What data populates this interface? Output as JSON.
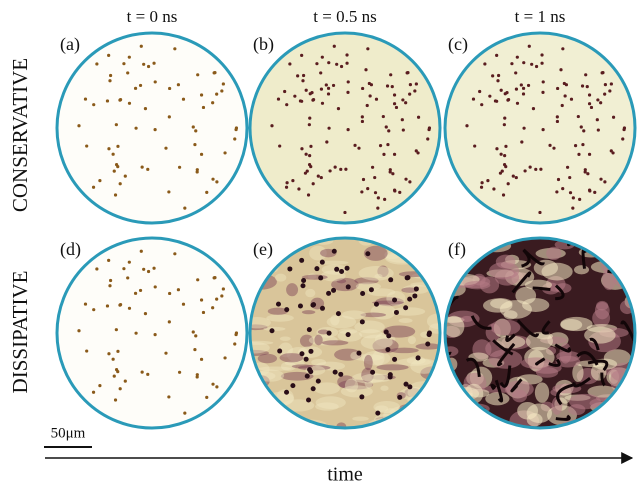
{
  "columns": [
    "t = 0 ns",
    "t = 0.5 ns",
    "t = 1 ns"
  ],
  "rows": [
    "CONSERVATIVE",
    "DISSIPATIVE"
  ],
  "panels": [
    "(a)",
    "(b)",
    "(c)",
    "(d)",
    "(e)",
    "(f)"
  ],
  "scale_bar": "50μm",
  "axis_label": "time"
}
